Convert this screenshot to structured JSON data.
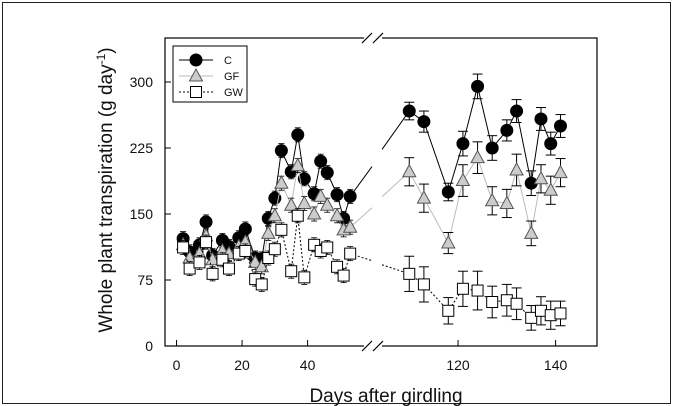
{
  "chart_data": {
    "type": "line",
    "xlabel": "Days after girdling",
    "ylabel_main": "Whole plant transpiration (g day",
    "ylabel_sup": "-1",
    "ylabel_close": ")",
    "ylim": [
      0,
      350
    ],
    "yticks": [
      0,
      75,
      150,
      225,
      300
    ],
    "x_segment1": {
      "range": [
        -2,
        56
      ],
      "ticks": [
        0,
        20,
        40
      ]
    },
    "x_segment2": {
      "range": [
        104,
        145
      ],
      "ticks": [
        120,
        140
      ]
    },
    "axis_break": true,
    "grid": false,
    "legend_position": "top-left",
    "series": [
      {
        "name": "C",
        "marker": "filled-circle",
        "line_style": "solid",
        "color": "#000000",
        "fill": "#000000",
        "segment1": [
          [
            2,
            122
          ],
          [
            4,
            107
          ],
          [
            7,
            115
          ],
          [
            9,
            141
          ],
          [
            11,
            103
          ],
          [
            14,
            120
          ],
          [
            16,
            113
          ],
          [
            19,
            123
          ],
          [
            21,
            133
          ],
          [
            24,
            100
          ],
          [
            26,
            99
          ],
          [
            28,
            145
          ],
          [
            30,
            168
          ],
          [
            32,
            222
          ],
          [
            35,
            198
          ],
          [
            37,
            240
          ],
          [
            39,
            190
          ],
          [
            42,
            173
          ],
          [
            44,
            210
          ],
          [
            46,
            197
          ],
          [
            49,
            172
          ],
          [
            51,
            145
          ],
          [
            53,
            170
          ]
        ],
        "segment2": [
          [
            110,
            267
          ],
          [
            113,
            255
          ],
          [
            118,
            175
          ],
          [
            121,
            230
          ],
          [
            124,
            295
          ],
          [
            127,
            225
          ],
          [
            130,
            245
          ],
          [
            132,
            267
          ],
          [
            135,
            185
          ],
          [
            137,
            258
          ],
          [
            139,
            230
          ],
          [
            141,
            250
          ]
        ],
        "err_segment2": [
          10,
          12,
          10,
          14,
          14,
          14,
          12,
          13,
          14,
          13,
          13,
          13
        ]
      },
      {
        "name": "GF",
        "marker": "triangle",
        "line_style": "solid",
        "color": "#bbbbbb",
        "fill": "#cccccc",
        "segment1": [
          [
            2,
            115
          ],
          [
            4,
            100
          ],
          [
            7,
            105
          ],
          [
            9,
            125
          ],
          [
            11,
            98
          ],
          [
            14,
            108
          ],
          [
            16,
            105
          ],
          [
            19,
            113
          ],
          [
            21,
            118
          ],
          [
            24,
            95
          ],
          [
            26,
            90
          ],
          [
            28,
            128
          ],
          [
            30,
            148
          ],
          [
            32,
            185
          ],
          [
            35,
            160
          ],
          [
            37,
            205
          ],
          [
            39,
            162
          ],
          [
            42,
            150
          ],
          [
            44,
            170
          ],
          [
            46,
            160
          ],
          [
            49,
            148
          ],
          [
            51,
            132
          ],
          [
            53,
            135
          ]
        ],
        "segment2": [
          [
            110,
            198
          ],
          [
            113,
            168
          ],
          [
            118,
            117
          ],
          [
            121,
            188
          ],
          [
            124,
            214
          ],
          [
            127,
            165
          ],
          [
            130,
            162
          ],
          [
            132,
            200
          ],
          [
            135,
            128
          ],
          [
            137,
            190
          ],
          [
            139,
            177
          ],
          [
            141,
            197
          ]
        ],
        "err_segment2": [
          16,
          16,
          12,
          18,
          18,
          16,
          16,
          18,
          14,
          16,
          16,
          16
        ]
      },
      {
        "name": "GW",
        "marker": "open-square",
        "line_style": "dotted",
        "color": "#000000",
        "fill": "#ffffff",
        "segment1": [
          [
            2,
            112
          ],
          [
            4,
            88
          ],
          [
            7,
            95
          ],
          [
            9,
            118
          ],
          [
            11,
            82
          ],
          [
            14,
            98
          ],
          [
            16,
            88
          ],
          [
            19,
            105
          ],
          [
            21,
            108
          ],
          [
            24,
            76
          ],
          [
            26,
            70
          ],
          [
            28,
            100
          ],
          [
            30,
            110
          ],
          [
            32,
            132
          ],
          [
            35,
            85
          ],
          [
            37,
            148
          ],
          [
            39,
            78
          ],
          [
            42,
            115
          ],
          [
            44,
            108
          ],
          [
            46,
            112
          ],
          [
            49,
            90
          ],
          [
            51,
            80
          ],
          [
            53,
            105
          ]
        ],
        "segment2": [
          [
            110,
            82
          ],
          [
            113,
            70
          ],
          [
            118,
            40
          ],
          [
            121,
            65
          ],
          [
            124,
            63
          ],
          [
            127,
            50
          ],
          [
            130,
            52
          ],
          [
            132,
            48
          ],
          [
            135,
            32
          ],
          [
            137,
            40
          ],
          [
            139,
            35
          ],
          [
            141,
            37
          ]
        ],
        "err_segment2": [
          20,
          20,
          15,
          20,
          22,
          18,
          18,
          18,
          14,
          16,
          16,
          14
        ]
      }
    ]
  }
}
